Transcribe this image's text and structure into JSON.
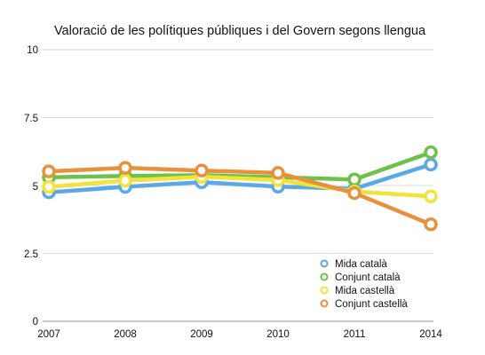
{
  "chart_data": {
    "type": "line",
    "title": "Valoració de les polítiques públiques i del Govern segons llengua",
    "xlabel": "",
    "ylabel": "",
    "categories": [
      "2007",
      "2008",
      "2009",
      "2010",
      "2011",
      "2014"
    ],
    "ylim": [
      0,
      10
    ],
    "yticks": [
      "0",
      "2.5",
      "5",
      "7.5",
      "10"
    ],
    "grid": true,
    "legend_position": "bottom-right",
    "series": [
      {
        "name": "Mida català",
        "color": "#5aa9e6",
        "values": [
          4.75,
          4.95,
          5.12,
          4.96,
          4.88,
          5.77
        ]
      },
      {
        "name": "Conjunt català",
        "color": "#6cc24a",
        "values": [
          5.3,
          5.35,
          5.38,
          5.3,
          5.22,
          6.22
        ]
      },
      {
        "name": "Mida castellà",
        "color": "#f2e33a",
        "values": [
          4.95,
          5.18,
          5.32,
          5.2,
          4.78,
          4.6
        ]
      },
      {
        "name": "Conjunt castellà",
        "color": "#e8913a",
        "values": [
          5.52,
          5.65,
          5.55,
          5.46,
          4.72,
          3.57
        ]
      }
    ]
  }
}
